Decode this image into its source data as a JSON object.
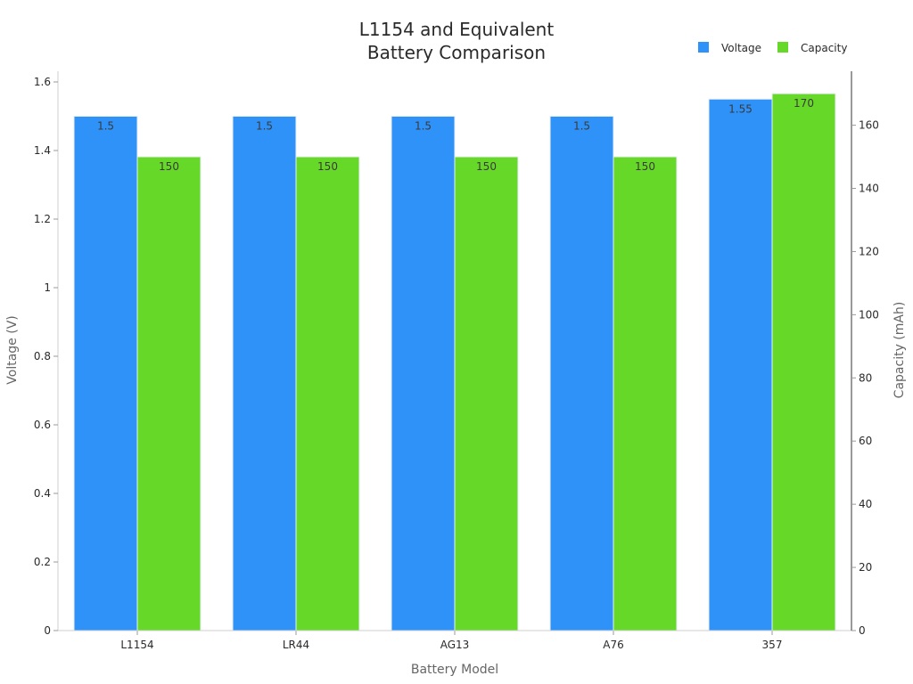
{
  "chart_data": {
    "type": "bar",
    "title_lines": [
      "L1154 and Equivalent",
      "Battery Comparison"
    ],
    "xlabel": "Battery Model",
    "ylabel_left": "Voltage (V)",
    "ylabel_right": "Capacity (mAh)",
    "categories": [
      "L1154",
      "LR44",
      "AG13",
      "A76",
      "357"
    ],
    "series": [
      {
        "name": "Voltage",
        "axis": "left",
        "color": "#2f92f8",
        "values": [
          1.5,
          1.5,
          1.5,
          1.5,
          1.55
        ],
        "labels": [
          "1.5",
          "1.5",
          "1.5",
          "1.5",
          "1.55"
        ]
      },
      {
        "name": "Capacity",
        "axis": "right",
        "color": "#66d928",
        "values": [
          150,
          150,
          150,
          150,
          170
        ],
        "labels": [
          "150",
          "150",
          "150",
          "150",
          "170"
        ]
      }
    ],
    "ylim_left": [
      0,
      1.6
    ],
    "yticks_left": [
      "0",
      "0.2",
      "0.4",
      "0.6",
      "0.8",
      "1",
      "1.2",
      "1.4",
      "1.6"
    ],
    "ylim_right": [
      0,
      175
    ],
    "yticks_right": [
      "0",
      "20",
      "40",
      "60",
      "80",
      "100",
      "120",
      "140",
      "160"
    ],
    "legend_position": "top-right",
    "grid": false
  }
}
